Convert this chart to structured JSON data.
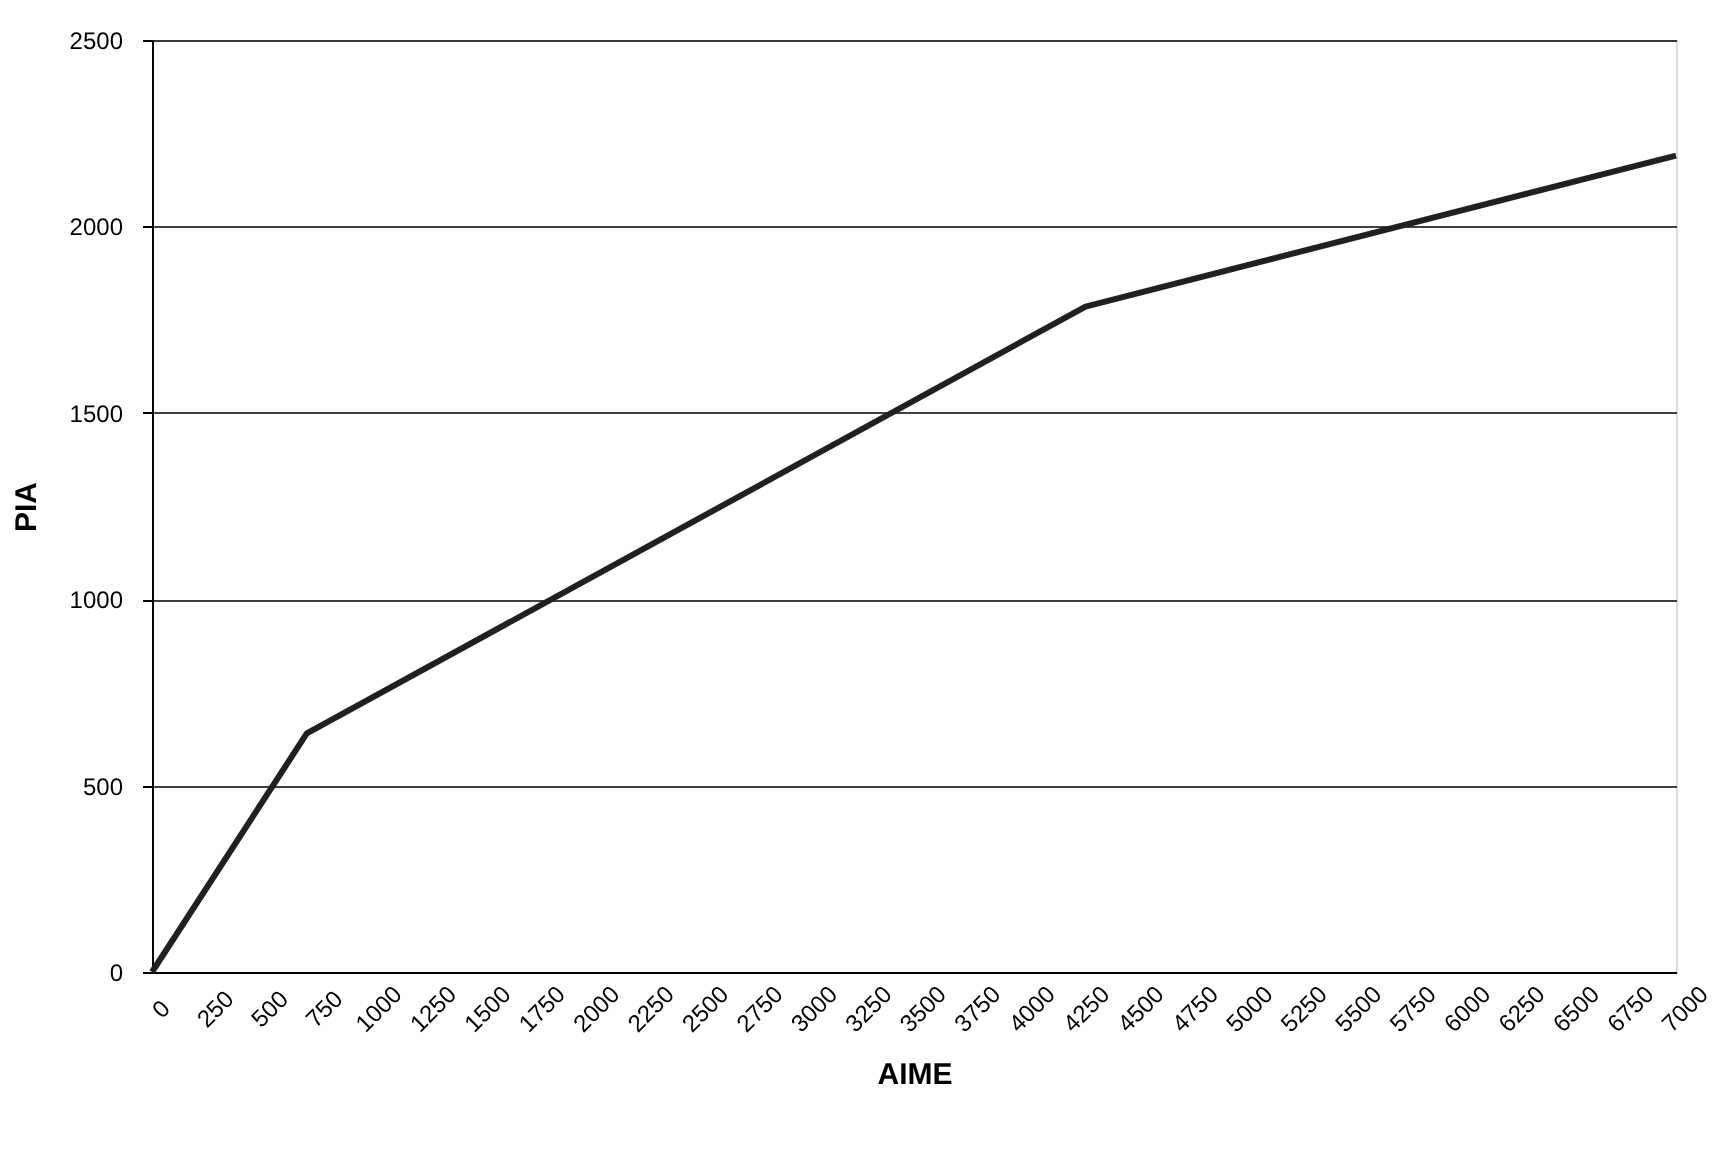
{
  "chart_data": {
    "type": "line",
    "xlabel": "AIME",
    "ylabel": "PIA",
    "x": [
      0,
      711,
      4288,
      7000
    ],
    "series": [
      {
        "color": "#231f20",
        "values": [
          0,
          640,
          1785,
          2190
        ]
      }
    ],
    "xlim": [
      0,
      7000
    ],
    "xticks": [
      0,
      250,
      500,
      750,
      1000,
      1250,
      1500,
      1750,
      2000,
      2250,
      2500,
      2750,
      3000,
      3250,
      3500,
      3750,
      4000,
      4250,
      4500,
      4750,
      5000,
      5250,
      5500,
      5750,
      6000,
      6250,
      6500,
      6750,
      7000
    ],
    "ylim": [
      0,
      2500
    ],
    "yticks": [
      0,
      500,
      1000,
      1500,
      2000,
      2500
    ],
    "grid": "y",
    "marker": "none",
    "line_style": "solid"
  }
}
